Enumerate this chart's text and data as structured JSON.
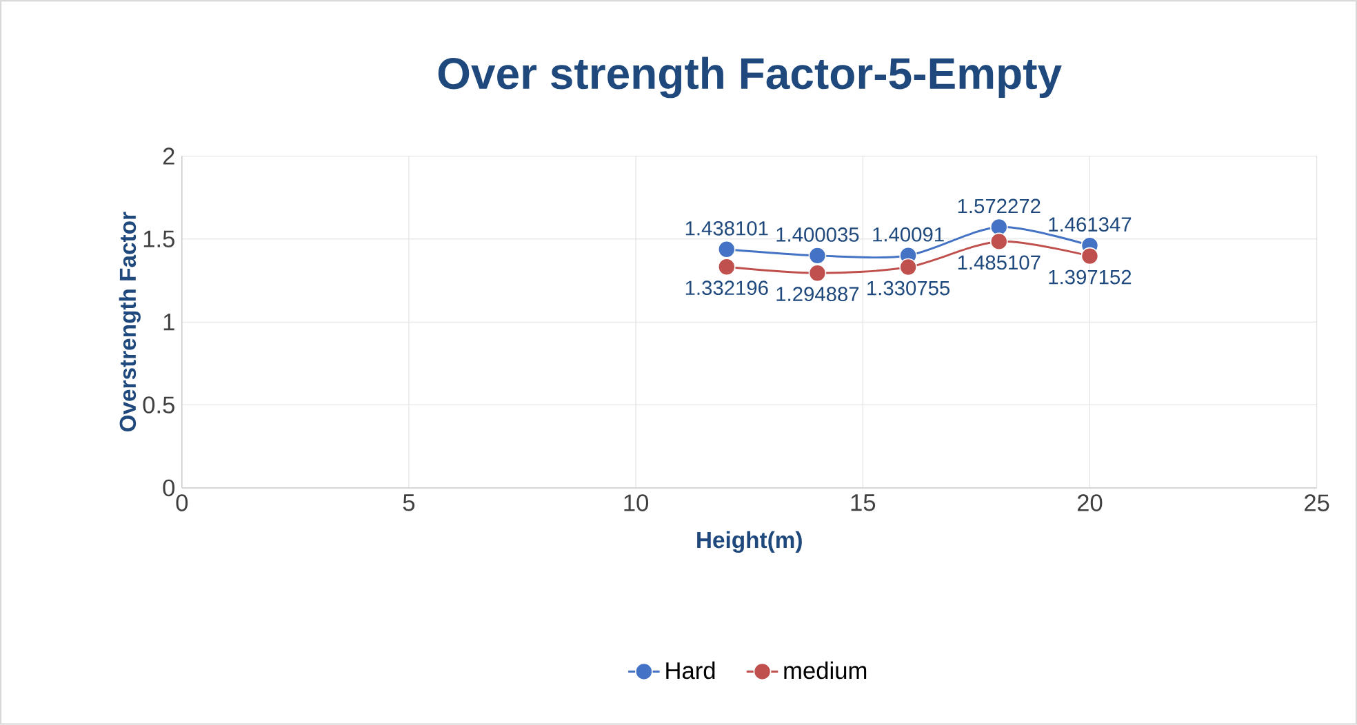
{
  "chart_data": {
    "type": "line",
    "title": "Over strength Factor-5-Empty",
    "xlabel": "Height(m)",
    "ylabel": "Overstrength Factor",
    "x": [
      12,
      14,
      16,
      18,
      20
    ],
    "series": [
      {
        "name": "Hard",
        "color": "#4472c4",
        "values": [
          1.438101,
          1.400035,
          1.40091,
          1.572272,
          1.461347
        ],
        "value_labels": [
          "1.438101",
          "1.400035",
          "1.40091",
          "1.572272",
          "1.461347"
        ]
      },
      {
        "name": "medium",
        "color": "#c0504d",
        "values": [
          1.332196,
          1.294887,
          1.330755,
          1.485107,
          1.397152
        ],
        "value_labels": [
          "1.332196",
          "1.294887",
          "1.330755",
          "1.485107",
          "1.397152"
        ]
      }
    ],
    "xlim": [
      0,
      25
    ],
    "xticks": [
      0,
      5,
      10,
      15,
      20,
      25
    ],
    "ylim": [
      0,
      2
    ],
    "yticks": [
      0,
      0.5,
      1,
      1.5,
      2
    ],
    "grid": true,
    "legend": "bottom",
    "marker": "circle",
    "line_style": "solid"
  }
}
